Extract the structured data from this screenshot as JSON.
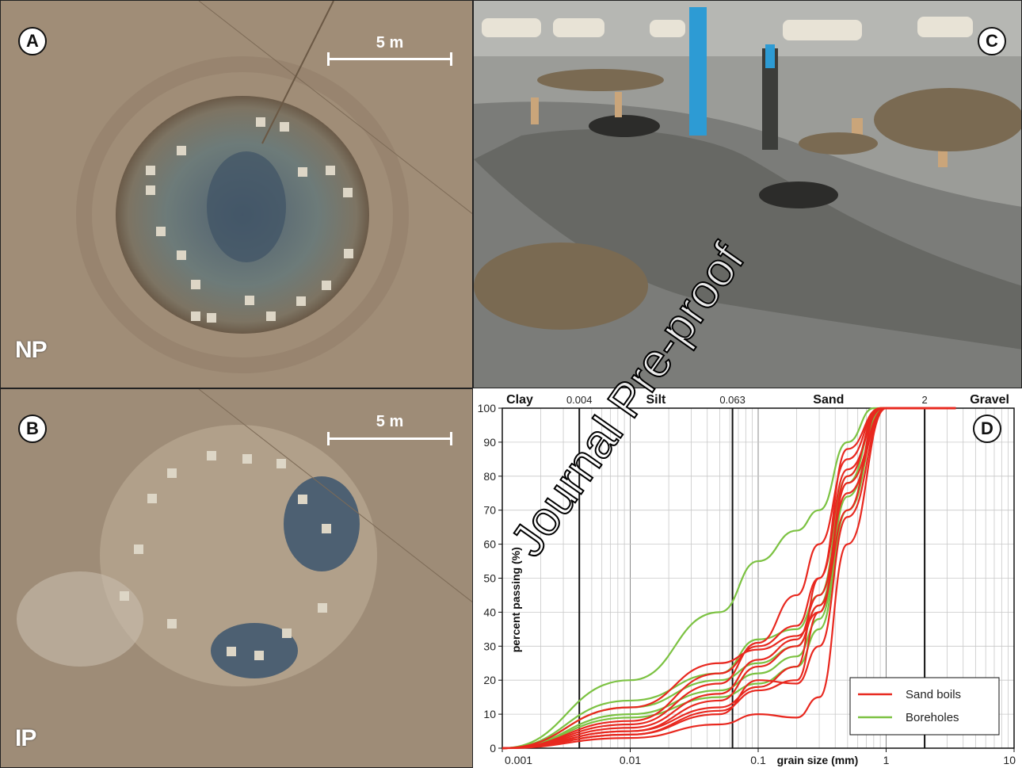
{
  "panels": {
    "a": {
      "badge": "A",
      "scale": "5 m",
      "label": "NP"
    },
    "b": {
      "badge": "B",
      "scale": "5 m",
      "label": "IP"
    },
    "c": {
      "badge": "C"
    },
    "d": {
      "badge": "D"
    }
  },
  "watermark": "Journal Pre-proof",
  "chart_data": {
    "type": "line",
    "xscale": "log",
    "xlim": [
      0.001,
      10
    ],
    "ylim": [
      0,
      100
    ],
    "xlabel": "grain size (mm)",
    "ylabel": "percent passing (%)",
    "x_ticks": [
      "0.001",
      "0.01",
      "0.1",
      "1",
      "10"
    ],
    "y_ticks": [
      "0",
      "10",
      "20",
      "30",
      "40",
      "50",
      "60",
      "70",
      "80",
      "90",
      "100"
    ],
    "classes": [
      "Clay",
      "Silt",
      "Sand",
      "Gravel"
    ],
    "boundaries": [
      {
        "value": 0.004,
        "label": "0.004"
      },
      {
        "value": 0.063,
        "label": "0.063"
      },
      {
        "value": 2,
        "label": "2"
      }
    ],
    "legend": {
      "position": "bottom-right"
    },
    "colors": {
      "Sand boils": "#e8281f",
      "Boreholes": "#7cc242"
    },
    "series": [
      {
        "name": "Sand boils",
        "curves": [
          [
            [
              0.001,
              0
            ],
            [
              0.01,
              12
            ],
            [
              0.05,
              25
            ],
            [
              0.1,
              29
            ],
            [
              0.2,
              33
            ],
            [
              0.3,
              40
            ],
            [
              0.5,
              80
            ],
            [
              0.9,
              100
            ],
            [
              3.5,
              100
            ]
          ],
          [
            [
              0.001,
              0
            ],
            [
              0.01,
              8
            ],
            [
              0.05,
              22
            ],
            [
              0.1,
              30
            ],
            [
              0.2,
              36
            ],
            [
              0.3,
              50
            ],
            [
              0.5,
              82
            ],
            [
              0.95,
              100
            ],
            [
              3.5,
              100
            ]
          ],
          [
            [
              0.001,
              0
            ],
            [
              0.01,
              6
            ],
            [
              0.05,
              16
            ],
            [
              0.1,
              26
            ],
            [
              0.2,
              32
            ],
            [
              0.3,
              45
            ],
            [
              0.5,
              75
            ],
            [
              1,
              100
            ],
            [
              3.5,
              100
            ]
          ],
          [
            [
              0.001,
              0
            ],
            [
              0.01,
              4
            ],
            [
              0.05,
              11
            ],
            [
              0.1,
              17
            ],
            [
              0.2,
              20
            ],
            [
              0.3,
              40
            ],
            [
              0.5,
              78
            ],
            [
              1,
              100
            ],
            [
              3.5,
              100
            ]
          ],
          [
            [
              0.001,
              0
            ],
            [
              0.01,
              3
            ],
            [
              0.05,
              7
            ],
            [
              0.1,
              10
            ],
            [
              0.2,
              9
            ],
            [
              0.3,
              15
            ],
            [
              0.5,
              60
            ],
            [
              1,
              100
            ],
            [
              3.5,
              100
            ]
          ],
          [
            [
              0.001,
              0
            ],
            [
              0.01,
              5
            ],
            [
              0.05,
              14
            ],
            [
              0.1,
              24
            ],
            [
              0.2,
              30
            ],
            [
              0.3,
              42
            ],
            [
              0.5,
              70
            ],
            [
              0.9,
              100
            ],
            [
              3.5,
              100
            ]
          ],
          [
            [
              0.001,
              0
            ],
            [
              0.01,
              4
            ],
            [
              0.05,
              10
            ],
            [
              0.1,
              20
            ],
            [
              0.2,
              19
            ],
            [
              0.3,
              30
            ],
            [
              0.5,
              68
            ],
            [
              1,
              100
            ],
            [
              3.5,
              100
            ]
          ],
          [
            [
              0.001,
              0
            ],
            [
              0.01,
              7
            ],
            [
              0.05,
              19
            ],
            [
              0.1,
              31
            ],
            [
              0.2,
              45
            ],
            [
              0.3,
              60
            ],
            [
              0.5,
              85
            ],
            [
              0.9,
              100
            ],
            [
              3.5,
              100
            ]
          ],
          [
            [
              0.001,
              0
            ],
            [
              0.01,
              5
            ],
            [
              0.05,
              12
            ],
            [
              0.1,
              18
            ],
            [
              0.2,
              24
            ],
            [
              0.3,
              50
            ],
            [
              0.5,
              88
            ],
            [
              0.9,
              100
            ],
            [
              3.5,
              100
            ]
          ]
        ]
      },
      {
        "name": "Boreholes",
        "curves": [
          [
            [
              0.001,
              0
            ],
            [
              0.01,
              20
            ],
            [
              0.05,
              40
            ],
            [
              0.1,
              55
            ],
            [
              0.2,
              64
            ],
            [
              0.3,
              70
            ],
            [
              0.5,
              90
            ],
            [
              0.8,
              100
            ],
            [
              1,
              100
            ]
          ],
          [
            [
              0.001,
              0
            ],
            [
              0.01,
              14
            ],
            [
              0.05,
              22
            ],
            [
              0.1,
              32
            ],
            [
              0.2,
              35
            ],
            [
              0.3,
              45
            ],
            [
              0.5,
              80
            ],
            [
              0.9,
              100
            ],
            [
              1,
              100
            ]
          ],
          [
            [
              0.001,
              0
            ],
            [
              0.01,
              12
            ],
            [
              0.05,
              20
            ],
            [
              0.1,
              25
            ],
            [
              0.2,
              30
            ],
            [
              0.3,
              42
            ],
            [
              0.5,
              78
            ],
            [
              0.9,
              100
            ],
            [
              1,
              100
            ]
          ],
          [
            [
              0.001,
              0
            ],
            [
              0.01,
              10
            ],
            [
              0.05,
              17
            ],
            [
              0.1,
              22
            ],
            [
              0.2,
              27
            ],
            [
              0.3,
              38
            ],
            [
              0.5,
              74
            ],
            [
              0.95,
              100
            ],
            [
              1,
              100
            ]
          ],
          [
            [
              0.001,
              0
            ],
            [
              0.01,
              9
            ],
            [
              0.05,
              15
            ],
            [
              0.1,
              19
            ],
            [
              0.2,
              24
            ],
            [
              0.3,
              35
            ],
            [
              0.5,
              70
            ],
            [
              0.95,
              100
            ],
            [
              1,
              100
            ]
          ]
        ]
      }
    ]
  }
}
